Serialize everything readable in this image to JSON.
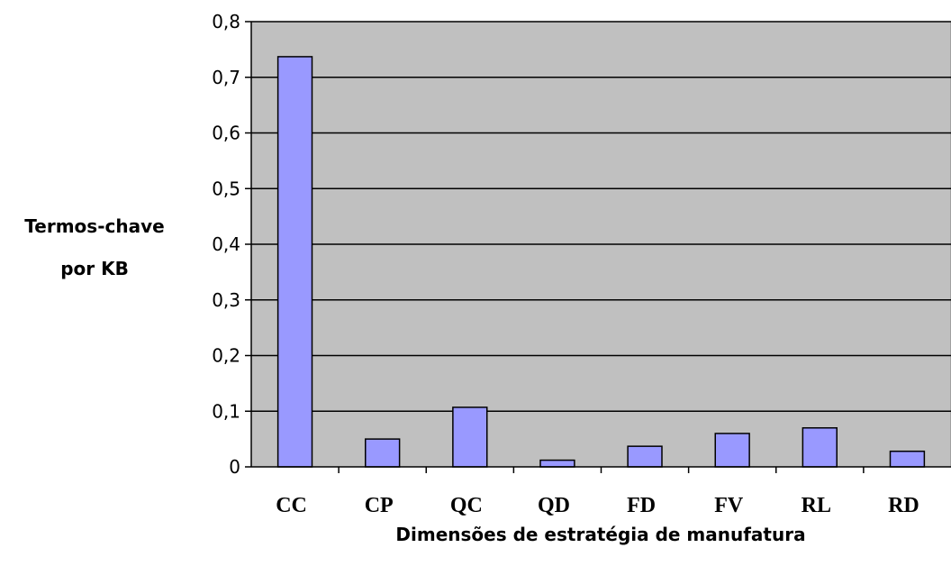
{
  "chart_data": {
    "type": "bar",
    "categories": [
      "CC",
      "CP",
      "QC",
      "QD",
      "FD",
      "FV",
      "RL",
      "RD"
    ],
    "values": [
      0.737,
      0.05,
      0.107,
      0.012,
      0.037,
      0.06,
      0.07,
      0.028
    ],
    "ylim": [
      0,
      0.8
    ],
    "yticks": [
      "0",
      "0,1",
      "0,2",
      "0,3",
      "0,4",
      "0,5",
      "0,6",
      "0,7",
      "0,8"
    ],
    "ylabel": [
      "Termos-chave",
      "por KB"
    ],
    "xlabel": "Dimensões de estratégia de manufatura",
    "grid": true,
    "legend": false,
    "colors": {
      "plot_background": "#c0c0c0",
      "bar_fill": "#9999ff",
      "bar_stroke": "#000000",
      "gridline": "#000000"
    }
  }
}
